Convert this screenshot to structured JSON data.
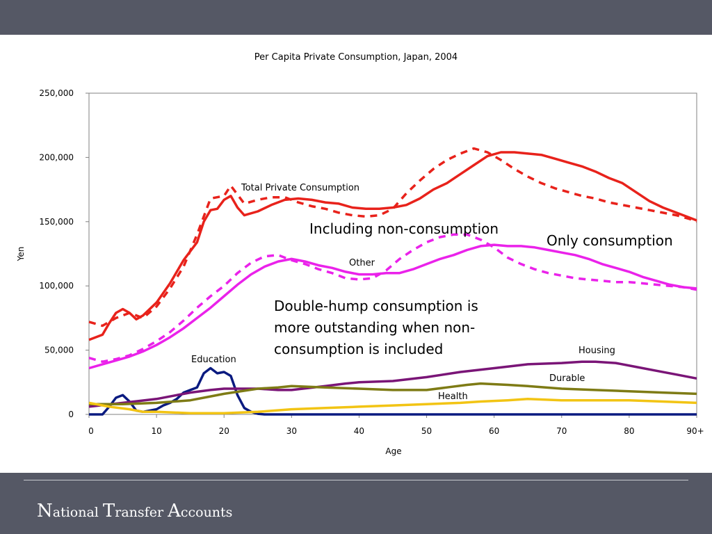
{
  "footer": {
    "title_parts": [
      {
        "cap": "N",
        "rest": "ational "
      },
      {
        "cap": "T",
        "rest": "ransfer "
      },
      {
        "cap": "A",
        "rest": "ccounts"
      }
    ]
  },
  "chart_data": {
    "type": "line",
    "title": "Per Capita Private Consumption, Japan, 2004",
    "xlabel": "Age",
    "ylabel": "Yen",
    "xlim": [
      0,
      90
    ],
    "ylim": [
      0,
      250000
    ],
    "x_ticks": [
      0,
      10,
      20,
      30,
      40,
      50,
      60,
      70,
      80,
      90
    ],
    "x_tick_labels": [
      "0",
      "10",
      "20",
      "30",
      "40",
      "50",
      "60",
      "70",
      "80",
      "90+"
    ],
    "y_ticks": [
      0,
      50000,
      100000,
      150000,
      200000,
      250000
    ],
    "y_tick_labels": [
      "0",
      "50,000",
      "100,000",
      "150,000",
      "200,000",
      "250,000"
    ],
    "grid": false,
    "series": [
      {
        "name": "Total Private Consumption",
        "variant": "Only consumption",
        "color": "#e8221b",
        "style": "solid",
        "points": [
          [
            0,
            58000
          ],
          [
            2,
            62000
          ],
          [
            3,
            71000
          ],
          [
            4,
            79000
          ],
          [
            5,
            82000
          ],
          [
            6,
            79000
          ],
          [
            7,
            74000
          ],
          [
            8,
            77000
          ],
          [
            10,
            87000
          ],
          [
            12,
            102000
          ],
          [
            14,
            120000
          ],
          [
            16,
            134000
          ],
          [
            17,
            150000
          ],
          [
            18,
            159000
          ],
          [
            19,
            160000
          ],
          [
            20,
            167000
          ],
          [
            21,
            170000
          ],
          [
            22,
            161000
          ],
          [
            23,
            155000
          ],
          [
            25,
            158000
          ],
          [
            27,
            163000
          ],
          [
            29,
            167000
          ],
          [
            31,
            168000
          ],
          [
            33,
            167000
          ],
          [
            35,
            165000
          ],
          [
            37,
            164000
          ],
          [
            39,
            161000
          ],
          [
            41,
            160000
          ],
          [
            43,
            160000
          ],
          [
            45,
            161000
          ],
          [
            47,
            163000
          ],
          [
            49,
            168000
          ],
          [
            51,
            175000
          ],
          [
            53,
            180000
          ],
          [
            55,
            187000
          ],
          [
            57,
            194000
          ],
          [
            59,
            201000
          ],
          [
            61,
            204000
          ],
          [
            63,
            204000
          ],
          [
            65,
            203000
          ],
          [
            67,
            202000
          ],
          [
            69,
            199000
          ],
          [
            71,
            196000
          ],
          [
            73,
            193000
          ],
          [
            75,
            189000
          ],
          [
            77,
            184000
          ],
          [
            79,
            180000
          ],
          [
            81,
            173000
          ],
          [
            83,
            166000
          ],
          [
            85,
            161000
          ],
          [
            87,
            157000
          ],
          [
            89,
            153000
          ],
          [
            90,
            151000
          ]
        ]
      },
      {
        "name": "Total Private Consumption",
        "variant": "Including non-consumption",
        "color": "#e8221b",
        "style": "dashed",
        "points": [
          [
            0,
            72000
          ],
          [
            2,
            69000
          ],
          [
            4,
            75000
          ],
          [
            6,
            79000
          ],
          [
            8,
            75000
          ],
          [
            10,
            84000
          ],
          [
            12,
            98000
          ],
          [
            14,
            115000
          ],
          [
            16,
            140000
          ],
          [
            18,
            168000
          ],
          [
            20,
            170000
          ],
          [
            21,
            178000
          ],
          [
            23,
            164000
          ],
          [
            25,
            167000
          ],
          [
            27,
            169000
          ],
          [
            29,
            169000
          ],
          [
            31,
            165000
          ],
          [
            33,
            162000
          ],
          [
            35,
            160000
          ],
          [
            37,
            157000
          ],
          [
            39,
            155000
          ],
          [
            41,
            154000
          ],
          [
            43,
            155000
          ],
          [
            45,
            160000
          ],
          [
            47,
            172000
          ],
          [
            49,
            182000
          ],
          [
            51,
            191000
          ],
          [
            53,
            198000
          ],
          [
            55,
            203000
          ],
          [
            57,
            207000
          ],
          [
            59,
            204000
          ],
          [
            61,
            198000
          ],
          [
            63,
            191000
          ],
          [
            65,
            185000
          ],
          [
            67,
            180000
          ],
          [
            69,
            176000
          ],
          [
            71,
            173000
          ],
          [
            73,
            170000
          ],
          [
            75,
            168000
          ],
          [
            77,
            165000
          ],
          [
            79,
            163000
          ],
          [
            81,
            161000
          ],
          [
            83,
            159000
          ],
          [
            85,
            157000
          ],
          [
            87,
            155000
          ],
          [
            89,
            152000
          ],
          [
            90,
            150000
          ]
        ]
      },
      {
        "name": "Other",
        "variant": "Only consumption",
        "color": "#ea22ea",
        "style": "solid",
        "points": [
          [
            0,
            36000
          ],
          [
            2,
            39000
          ],
          [
            4,
            42000
          ],
          [
            6,
            45000
          ],
          [
            8,
            49000
          ],
          [
            10,
            54000
          ],
          [
            12,
            60000
          ],
          [
            14,
            67000
          ],
          [
            16,
            75000
          ],
          [
            18,
            83000
          ],
          [
            20,
            92000
          ],
          [
            22,
            101000
          ],
          [
            24,
            109000
          ],
          [
            26,
            115000
          ],
          [
            28,
            119000
          ],
          [
            30,
            121000
          ],
          [
            32,
            119000
          ],
          [
            34,
            116000
          ],
          [
            36,
            114000
          ],
          [
            38,
            111000
          ],
          [
            40,
            109000
          ],
          [
            42,
            109000
          ],
          [
            44,
            110000
          ],
          [
            46,
            110000
          ],
          [
            48,
            113000
          ],
          [
            50,
            117000
          ],
          [
            52,
            121000
          ],
          [
            54,
            124000
          ],
          [
            56,
            128000
          ],
          [
            58,
            131000
          ],
          [
            60,
            132000
          ],
          [
            62,
            131000
          ],
          [
            64,
            131000
          ],
          [
            66,
            130000
          ],
          [
            68,
            128000
          ],
          [
            70,
            126000
          ],
          [
            72,
            124000
          ],
          [
            74,
            121000
          ],
          [
            76,
            117000
          ],
          [
            78,
            114000
          ],
          [
            80,
            111000
          ],
          [
            82,
            107000
          ],
          [
            84,
            104000
          ],
          [
            86,
            101000
          ],
          [
            88,
            99000
          ],
          [
            90,
            98000
          ]
        ]
      },
      {
        "name": "Other",
        "variant": "Including non-consumption",
        "color": "#ea22ea",
        "style": "dashed",
        "points": [
          [
            0,
            44000
          ],
          [
            2,
            41000
          ],
          [
            4,
            43000
          ],
          [
            6,
            46000
          ],
          [
            8,
            51000
          ],
          [
            10,
            57000
          ],
          [
            12,
            64000
          ],
          [
            14,
            73000
          ],
          [
            16,
            83000
          ],
          [
            18,
            92000
          ],
          [
            20,
            100000
          ],
          [
            22,
            110000
          ],
          [
            24,
            118000
          ],
          [
            26,
            123000
          ],
          [
            28,
            124000
          ],
          [
            30,
            120000
          ],
          [
            32,
            117000
          ],
          [
            34,
            113000
          ],
          [
            36,
            110000
          ],
          [
            38,
            106000
          ],
          [
            40,
            105000
          ],
          [
            42,
            106000
          ],
          [
            44,
            112000
          ],
          [
            46,
            121000
          ],
          [
            48,
            128000
          ],
          [
            50,
            134000
          ],
          [
            52,
            138000
          ],
          [
            54,
            140000
          ],
          [
            56,
            140000
          ],
          [
            58,
            136000
          ],
          [
            60,
            130000
          ],
          [
            62,
            122000
          ],
          [
            64,
            117000
          ],
          [
            66,
            113000
          ],
          [
            68,
            110000
          ],
          [
            70,
            108000
          ],
          [
            72,
            106000
          ],
          [
            74,
            105000
          ],
          [
            76,
            104000
          ],
          [
            78,
            103000
          ],
          [
            80,
            103000
          ],
          [
            82,
            102000
          ],
          [
            84,
            101000
          ],
          [
            86,
            100000
          ],
          [
            88,
            99000
          ],
          [
            90,
            97000
          ]
        ]
      },
      {
        "name": "Education",
        "color": "#0a1a80",
        "style": "solid",
        "points": [
          [
            0,
            0
          ],
          [
            2,
            0
          ],
          [
            3,
            6000
          ],
          [
            4,
            13000
          ],
          [
            5,
            15000
          ],
          [
            6,
            10000
          ],
          [
            7,
            3000
          ],
          [
            8,
            2000
          ],
          [
            9,
            3000
          ],
          [
            10,
            4000
          ],
          [
            11,
            7000
          ],
          [
            12,
            9000
          ],
          [
            13,
            12000
          ],
          [
            14,
            17000
          ],
          [
            15,
            19000
          ],
          [
            16,
            21000
          ],
          [
            17,
            32000
          ],
          [
            18,
            36000
          ],
          [
            19,
            32000
          ],
          [
            20,
            33000
          ],
          [
            21,
            30000
          ],
          [
            22,
            15000
          ],
          [
            23,
            5000
          ],
          [
            24,
            2000
          ],
          [
            25,
            500
          ],
          [
            26,
            0
          ],
          [
            90,
            0
          ]
        ]
      },
      {
        "name": "Housing",
        "color": "#7a1577",
        "style": "solid",
        "points": [
          [
            0,
            6000
          ],
          [
            5,
            9000
          ],
          [
            10,
            12000
          ],
          [
            15,
            17000
          ],
          [
            18,
            19000
          ],
          [
            20,
            20000
          ],
          [
            25,
            20000
          ],
          [
            28,
            19000
          ],
          [
            30,
            19000
          ],
          [
            35,
            22000
          ],
          [
            38,
            24000
          ],
          [
            40,
            25000
          ],
          [
            45,
            26000
          ],
          [
            50,
            29000
          ],
          [
            55,
            33000
          ],
          [
            60,
            36000
          ],
          [
            65,
            39000
          ],
          [
            70,
            40000
          ],
          [
            73,
            41000
          ],
          [
            75,
            41000
          ],
          [
            78,
            40000
          ],
          [
            81,
            37000
          ],
          [
            84,
            34000
          ],
          [
            87,
            31000
          ],
          [
            90,
            28000
          ]
        ]
      },
      {
        "name": "Durable",
        "color": "#7e7b15",
        "style": "solid",
        "points": [
          [
            0,
            8000
          ],
          [
            5,
            8000
          ],
          [
            10,
            9000
          ],
          [
            15,
            11000
          ],
          [
            18,
            14000
          ],
          [
            20,
            16000
          ],
          [
            25,
            20000
          ],
          [
            28,
            21000
          ],
          [
            30,
            22000
          ],
          [
            35,
            21000
          ],
          [
            40,
            20000
          ],
          [
            45,
            19000
          ],
          [
            50,
            19000
          ],
          [
            53,
            21000
          ],
          [
            56,
            23000
          ],
          [
            58,
            24000
          ],
          [
            62,
            23000
          ],
          [
            65,
            22000
          ],
          [
            70,
            20000
          ],
          [
            75,
            19000
          ],
          [
            80,
            18000
          ],
          [
            85,
            17000
          ],
          [
            90,
            16000
          ]
        ]
      },
      {
        "name": "Health",
        "color": "#f2c414",
        "style": "solid",
        "points": [
          [
            0,
            9000
          ],
          [
            3,
            6000
          ],
          [
            6,
            4000
          ],
          [
            8,
            2000
          ],
          [
            10,
            2000
          ],
          [
            15,
            1000
          ],
          [
            20,
            1000
          ],
          [
            25,
            2000
          ],
          [
            30,
            4000
          ],
          [
            35,
            5000
          ],
          [
            40,
            6000
          ],
          [
            45,
            7000
          ],
          [
            50,
            8000
          ],
          [
            55,
            9000
          ],
          [
            58,
            10000
          ],
          [
            62,
            11000
          ],
          [
            65,
            12000
          ],
          [
            70,
            11000
          ],
          [
            75,
            11000
          ],
          [
            80,
            11000
          ],
          [
            85,
            10000
          ],
          [
            90,
            9000
          ]
        ]
      }
    ],
    "series_labels": [
      "Total Private Consumption",
      "Other",
      "Education",
      "Housing",
      "Durable",
      "Health"
    ],
    "annotations": {
      "including": "Including non-consumption",
      "only": "Only consumption",
      "note": [
        "Double-hump consumption is",
        "more outstanding when non-",
        "consumption is included"
      ]
    }
  }
}
